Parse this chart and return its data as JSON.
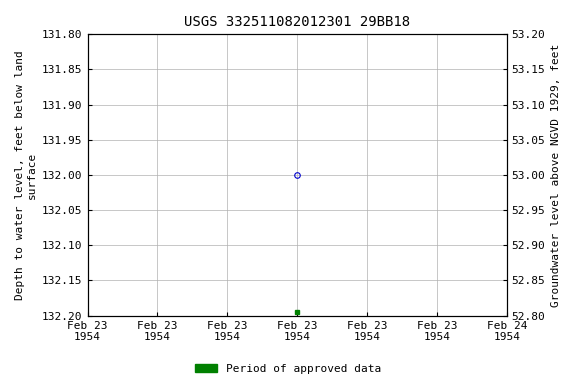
{
  "title": "USGS 332511082012301 29BB18",
  "left_ylabel": "Depth to water level, feet below land\nsurface",
  "right_ylabel": "Groundwater level above NGVD 1929, feet",
  "ylim_left": [
    131.8,
    132.2
  ],
  "ylim_right": [
    52.8,
    53.2
  ],
  "left_yticks": [
    131.8,
    131.85,
    131.9,
    131.95,
    132.0,
    132.05,
    132.1,
    132.15,
    132.2
  ],
  "right_yticks": [
    53.2,
    53.15,
    53.1,
    53.05,
    53.0,
    52.95,
    52.9,
    52.85,
    52.8
  ],
  "xlim": [
    0,
    6
  ],
  "xtick_positions": [
    0,
    1,
    2,
    3,
    4,
    5,
    6
  ],
  "xtick_labels": [
    "Feb 23\n1954",
    "Feb 23\n1954",
    "Feb 23\n1954",
    "Feb 23\n1954",
    "Feb 23\n1954",
    "Feb 23\n1954",
    "Feb 24\n1954"
  ],
  "data_point_x": 3,
  "data_point_y": 132.0,
  "data_point_color": "#0000cc",
  "data_point_marker": "o",
  "data_point_markersize": 4,
  "data_point_fillstyle": "none",
  "green_dot_x": 3,
  "green_dot_y": 132.195,
  "green_dot_color": "#008000",
  "green_dot_marker": "s",
  "green_dot_markersize": 3,
  "background_color": "#ffffff",
  "grid_color": "#b0b0b0",
  "grid_linestyle": "-",
  "grid_linewidth": 0.5,
  "legend_label": "Period of approved data",
  "legend_color": "#008000",
  "title_fontsize": 10,
  "label_fontsize": 8,
  "tick_fontsize": 8,
  "font_family": "DejaVu Sans Mono"
}
